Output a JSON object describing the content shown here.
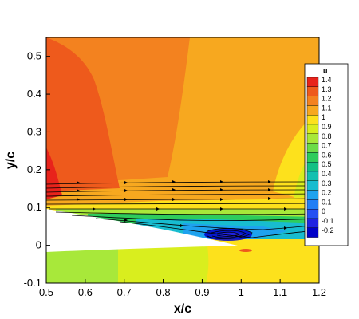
{
  "chart_data": {
    "type": "contour",
    "xlabel": "x/c",
    "ylabel": "y/c",
    "xlim": [
      0.5,
      1.2
    ],
    "ylim": [
      -0.1,
      0.55
    ],
    "x_ticks": [
      0.5,
      0.6,
      0.7,
      0.8,
      0.9,
      1,
      1.1,
      1.2
    ],
    "y_ticks": [
      -0.1,
      0,
      0.1,
      0.2,
      0.3,
      0.4,
      0.5
    ],
    "x_tick_labels": [
      "0.5",
      "0.6",
      "0.7",
      "0.8",
      "0.9",
      "1",
      "1.1",
      "1.2"
    ],
    "y_tick_labels": [
      "-0.1",
      "0",
      "0.1",
      "0.2",
      "0.3",
      "0.4",
      "0.5"
    ],
    "legend": {
      "title": "u",
      "position": "right",
      "levels": [
        1.4,
        1.3,
        1.2,
        1.1,
        1,
        0.9,
        0.8,
        0.7,
        0.6,
        0.5,
        0.4,
        0.3,
        0.2,
        0.1,
        0,
        -0.1,
        -0.2
      ],
      "labels": [
        "1.4",
        "1.3",
        "1.2",
        "1.1",
        "1",
        "0.9",
        "0.8",
        "0.7",
        "0.6",
        "0.5",
        "0.4",
        "0.3",
        "0.2",
        "0.1",
        "0",
        "-0.1",
        "-0.2"
      ],
      "colors": [
        "#e8231b",
        "#ee5a1c",
        "#f3821f",
        "#f7a81f",
        "#fde11c",
        "#d9ee1e",
        "#a8e83a",
        "#6cdc48",
        "#2ecc5c",
        "#14c084",
        "#14c0b0",
        "#18bccf",
        "#1ea2ee",
        "#227ef5",
        "#2550f2",
        "#1f22e2",
        "#0000c8"
      ]
    },
    "grid": false,
    "streamlines": true
  }
}
